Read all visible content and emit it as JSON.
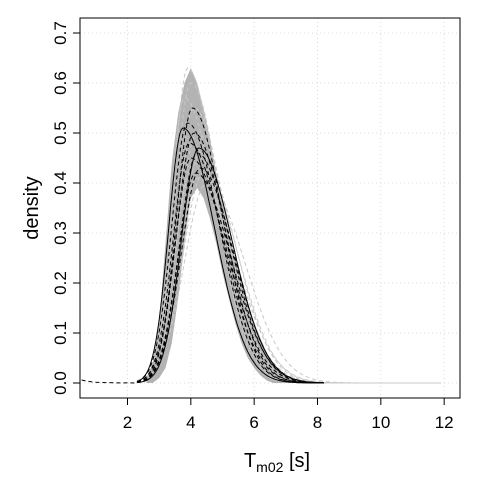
{
  "chart_data": {
    "type": "line",
    "xlabel": "T",
    "xlabel_subscript": "m02",
    "xlabel_unit": " [s]",
    "ylabel": "density",
    "xlim": [
      0.5,
      12.5
    ],
    "ylim": [
      -0.03,
      0.73
    ],
    "x_ticks": [
      2,
      4,
      6,
      8,
      10,
      12
    ],
    "y_ticks": [
      0.0,
      0.1,
      0.2,
      0.3,
      0.4,
      0.5,
      0.6,
      0.7
    ],
    "x_tick_labels": [
      "2",
      "4",
      "6",
      "8",
      "10",
      "12"
    ],
    "y_tick_labels": [
      "0.0",
      "0.1",
      "0.2",
      "0.3",
      "0.4",
      "0.5",
      "0.6",
      "0.7"
    ],
    "grid": true,
    "colors": {
      "envelope": "#b3b3b3",
      "grey_dashed": "#c8c8c8",
      "black": "#000000",
      "grid": "#d9d9d9"
    },
    "envelope": {
      "x": [
        2.6,
        2.8,
        3.0,
        3.2,
        3.4,
        3.6,
        3.8,
        4.0,
        4.2,
        4.4,
        4.6,
        4.8,
        5.0,
        5.2,
        5.4,
        5.6,
        5.8,
        6.0,
        6.2,
        6.4,
        6.6,
        6.8,
        7.0,
        7.2,
        7.4
      ],
      "lower": [
        0.0,
        0.0,
        0.01,
        0.03,
        0.08,
        0.17,
        0.28,
        0.37,
        0.39,
        0.37,
        0.33,
        0.28,
        0.22,
        0.17,
        0.12,
        0.08,
        0.05,
        0.03,
        0.015,
        0.005,
        0.0,
        0.0,
        0.0,
        0.0,
        0.0
      ],
      "upper": [
        0.01,
        0.04,
        0.12,
        0.28,
        0.44,
        0.54,
        0.6,
        0.63,
        0.6,
        0.55,
        0.49,
        0.42,
        0.36,
        0.3,
        0.25,
        0.2,
        0.16,
        0.12,
        0.09,
        0.06,
        0.04,
        0.025,
        0.015,
        0.008,
        0.003
      ]
    },
    "grey_series": [
      {
        "peak": 0.63,
        "mode": 3.9,
        "sd_left": 0.45,
        "sd_right": 0.9
      },
      {
        "peak": 0.6,
        "mode": 4.0,
        "sd_left": 0.5,
        "sd_right": 0.95
      },
      {
        "peak": 0.57,
        "mode": 3.8,
        "sd_left": 0.45,
        "sd_right": 1.0
      },
      {
        "peak": 0.55,
        "mode": 4.1,
        "sd_left": 0.55,
        "sd_right": 1.0
      },
      {
        "peak": 0.52,
        "mode": 3.9,
        "sd_left": 0.5,
        "sd_right": 1.05
      },
      {
        "peak": 0.5,
        "mode": 4.2,
        "sd_left": 0.6,
        "sd_right": 1.05
      },
      {
        "peak": 0.48,
        "mode": 4.0,
        "sd_left": 0.55,
        "sd_right": 1.1
      },
      {
        "peak": 0.46,
        "mode": 4.3,
        "sd_left": 0.6,
        "sd_right": 1.1
      },
      {
        "peak": 0.44,
        "mode": 4.1,
        "sd_left": 0.6,
        "sd_right": 1.15
      },
      {
        "peak": 0.42,
        "mode": 4.4,
        "sd_left": 0.65,
        "sd_right": 1.1
      },
      {
        "peak": 0.41,
        "mode": 4.2,
        "sd_left": 0.6,
        "sd_right": 1.2
      },
      {
        "peak": 0.4,
        "mode": 4.5,
        "sd_left": 0.7,
        "sd_right": 1.2
      }
    ],
    "black_series": [
      {
        "style": "solid",
        "peak": 0.51,
        "mode": 3.75,
        "sd_left": 0.45,
        "sd_right": 1.0
      },
      {
        "style": "solid",
        "peak": 0.47,
        "mode": 4.25,
        "sd_left": 0.55,
        "sd_right": 1.05
      },
      {
        "style": "dashed",
        "peak": 0.55,
        "mode": 4.05,
        "sd_left": 0.5,
        "sd_right": 0.95
      },
      {
        "style": "dashed",
        "peak": 0.52,
        "mode": 3.9,
        "sd_left": 0.5,
        "sd_right": 1.0
      },
      {
        "style": "dashed",
        "peak": 0.5,
        "mode": 4.1,
        "sd_left": 0.55,
        "sd_right": 1.0
      },
      {
        "style": "dashed",
        "peak": 0.48,
        "mode": 3.95,
        "sd_left": 0.5,
        "sd_right": 1.05
      },
      {
        "style": "dashed",
        "peak": 0.46,
        "mode": 4.2,
        "sd_left": 0.55,
        "sd_right": 1.05
      },
      {
        "style": "dashed",
        "peak": 0.45,
        "mode": 4.0,
        "sd_left": 0.5,
        "sd_right": 1.1
      },
      {
        "style": "dashed",
        "peak": 0.43,
        "mode": 4.3,
        "sd_left": 0.6,
        "sd_right": 1.05
      },
      {
        "style": "dashed",
        "peak": 0.42,
        "mode": 4.15,
        "sd_left": 0.55,
        "sd_right": 1.1
      }
    ],
    "tail_line": {
      "style": "dashed",
      "x": [
        0.55,
        0.7,
        0.85,
        1.0,
        1.3,
        1.6,
        2.0,
        2.3
      ],
      "y": [
        0.006,
        0.004,
        0.0025,
        0.0015,
        0.0008,
        0.0004,
        0.0002,
        0.0
      ]
    }
  }
}
